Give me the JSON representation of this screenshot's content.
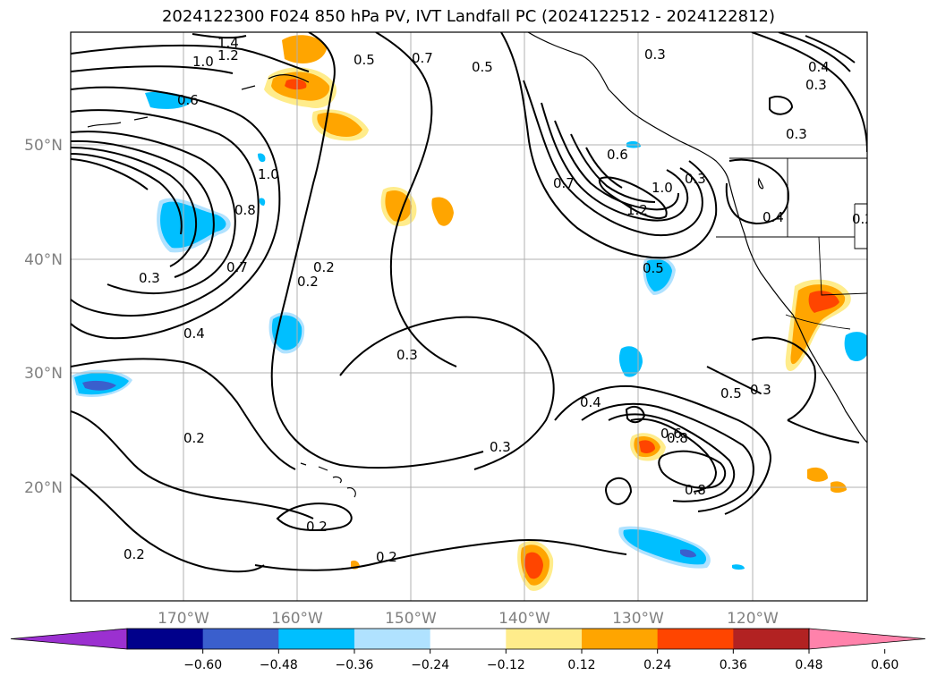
{
  "title": "2024122300 F024 850 hPa PV, IVT Landfall PC (2024122512 - 2024122812)",
  "axes": {
    "lat_labels": [
      "50°N",
      "40°N",
      "30°N",
      "20°N"
    ],
    "lon_labels": [
      "170°W",
      "160°W",
      "150°W",
      "140°W",
      "130°W",
      "120°W"
    ]
  },
  "colorbar": {
    "ticks": [
      "−0.60",
      "−0.48",
      "−0.36",
      "−0.24",
      "−0.12",
      "0.12",
      "0.24",
      "0.36",
      "0.48",
      "0.60"
    ],
    "colors": [
      "#9b30d0",
      "#00008b",
      "#3a5fcd",
      "#00bfff",
      "#b0e2ff",
      "#ffffff",
      "#ffec8b",
      "#ffa500",
      "#ff4500",
      "#b22222",
      "#ff82ab"
    ]
  },
  "contour_labels": [
    "1.4",
    "1.2",
    "1.0",
    "0.6",
    "0.5",
    "0.7",
    "0.3",
    "0.8",
    "0.4",
    "0.2",
    "0.7",
    "1.2",
    "1.0",
    "0.5",
    "0.3",
    "0.4",
    "0.6",
    "0.8",
    "0.7",
    "0.5",
    "0.3",
    "0.2",
    "0.2",
    "0.3",
    "0.2",
    "0.2",
    "0.4",
    "0.3",
    "0.3",
    "0.6",
    "0.5",
    "0.3",
    "0.2",
    "0.4",
    "0.3",
    "1.0",
    "0.8",
    "0.2"
  ]
}
